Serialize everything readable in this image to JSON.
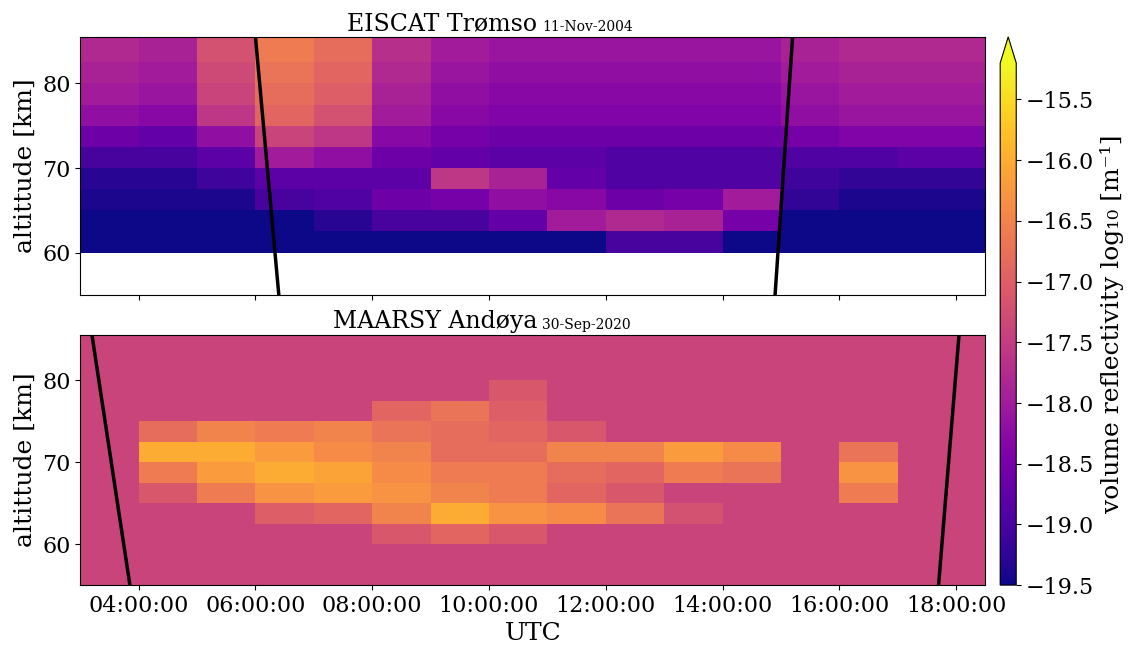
{
  "chart_data": [
    {
      "type": "heatmap",
      "title": "EISCAT Trømso",
      "subtitle": "11-Nov-2004",
      "y_label": "altittude [km]",
      "tick_labels": "y",
      "xlim": [
        3.0,
        18.5
      ],
      "xticks": [
        4,
        6,
        8,
        10,
        12,
        14,
        16,
        18
      ],
      "ylim": [
        55,
        85.5
      ],
      "yticks": [
        60,
        70,
        80
      ],
      "x_edges": [
        3.0,
        4.0,
        5.0,
        6.0,
        7.0,
        8.0,
        9.0,
        10.0,
        11.0,
        12.0,
        13.0,
        14.0,
        15.0,
        16.0,
        17.0,
        18.0,
        18.5
      ],
      "y_edges": [
        55,
        57.5,
        60,
        62.5,
        65,
        67.5,
        70,
        72.5,
        75,
        77.5,
        80,
        82.5,
        85.5
      ],
      "cells": [
        [
          null,
          null,
          null,
          null,
          null,
          null,
          null,
          null,
          null,
          null,
          null,
          null,
          null,
          null,
          null,
          null
        ],
        [
          null,
          null,
          null,
          null,
          null,
          null,
          null,
          null,
          null,
          null,
          null,
          null,
          null,
          null,
          null,
          null
        ],
        [
          -19.5,
          -19.5,
          -19.5,
          -19.5,
          -19.5,
          -19.5,
          -19.5,
          -19.5,
          -19.5,
          -19.0,
          -19.0,
          -19.5,
          -19.5,
          -19.5,
          -19.5,
          -19.5
        ],
        [
          -19.5,
          -19.5,
          -19.5,
          -19.5,
          -19.3,
          -19.0,
          -19.0,
          -18.7,
          -18.0,
          -17.8,
          -17.9,
          -18.5,
          -19.5,
          -19.5,
          -19.5,
          -19.5
        ],
        [
          -19.4,
          -19.4,
          -19.4,
          -19.0,
          -18.9,
          -18.6,
          -18.5,
          -18.2,
          -18.3,
          -18.6,
          -18.5,
          -18.0,
          -19.2,
          -19.4,
          -19.4,
          -19.4
        ],
        [
          -19.3,
          -19.3,
          -19.1,
          -18.8,
          -18.8,
          -18.8,
          -17.6,
          -17.9,
          -18.7,
          -18.9,
          -18.9,
          -18.9,
          -19.1,
          -19.2,
          -19.2,
          -19.2
        ],
        [
          -19.0,
          -19.0,
          -18.8,
          -18.0,
          -18.2,
          -18.6,
          -18.7,
          -18.8,
          -18.8,
          -18.9,
          -18.9,
          -18.9,
          -18.9,
          -18.9,
          -18.8,
          -18.8
        ],
        [
          -18.6,
          -18.7,
          -18.2,
          -17.4,
          -17.6,
          -18.3,
          -18.5,
          -18.6,
          -18.6,
          -18.6,
          -18.6,
          -18.6,
          -18.5,
          -18.4,
          -18.4,
          -18.4
        ],
        [
          -18.2,
          -18.3,
          -17.6,
          -16.9,
          -17.2,
          -18.0,
          -18.3,
          -18.4,
          -18.4,
          -18.4,
          -18.4,
          -18.4,
          -18.2,
          -18.1,
          -18.1,
          -18.1
        ],
        [
          -18.0,
          -18.1,
          -17.4,
          -16.8,
          -17.0,
          -17.9,
          -18.2,
          -18.3,
          -18.3,
          -18.3,
          -18.3,
          -18.3,
          -18.1,
          -18.0,
          -18.0,
          -18.0
        ],
        [
          -17.9,
          -18.0,
          -17.3,
          -16.7,
          -16.9,
          -17.8,
          -18.1,
          -18.2,
          -18.2,
          -18.2,
          -18.2,
          -18.2,
          -18.0,
          -17.9,
          -17.9,
          -17.9
        ],
        [
          -17.8,
          -17.9,
          -17.2,
          -16.6,
          -16.8,
          -17.7,
          -18.0,
          -18.1,
          -18.1,
          -18.1,
          -18.1,
          -18.1,
          -17.9,
          -17.8,
          -17.8,
          -17.8
        ]
      ],
      "lines": [
        {
          "x": [
            6.0,
            6.4
          ],
          "y": [
            85.5,
            55
          ]
        },
        {
          "x": [
            14.9,
            15.2
          ],
          "y": [
            55,
            85.5
          ]
        }
      ]
    },
    {
      "type": "heatmap",
      "title": "MAARSY Andøya",
      "subtitle": "30-Sep-2020",
      "x_label": "UTC",
      "y_label": "altittude [km]",
      "xlim": [
        3.0,
        18.5
      ],
      "xticks": [
        {
          "value": 4,
          "label": "04:00:00"
        },
        {
          "value": 6,
          "label": "06:00:00"
        },
        {
          "value": 8,
          "label": "08:00:00"
        },
        {
          "value": 10,
          "label": "10:00:00"
        },
        {
          "value": 12,
          "label": "12:00:00"
        },
        {
          "value": 14,
          "label": "14:00:00"
        },
        {
          "value": 16,
          "label": "16:00:00"
        },
        {
          "value": 18,
          "label": "18:00:00"
        }
      ],
      "ylim": [
        55,
        85.5
      ],
      "yticks": [
        60,
        70,
        80
      ],
      "x_edges": [
        3.0,
        4.0,
        5.0,
        6.0,
        7.0,
        8.0,
        9.0,
        10.0,
        11.0,
        12.0,
        13.0,
        14.0,
        15.0,
        16.0,
        17.0,
        18.0,
        18.5
      ],
      "y_edges": [
        55,
        57.5,
        60,
        62.5,
        65,
        67.5,
        70,
        72.5,
        75,
        77.5,
        80,
        82.5,
        85.5
      ],
      "cells": [
        [
          -17.4,
          -17.4,
          -17.4,
          -17.4,
          -17.4,
          -17.4,
          -17.4,
          -17.4,
          -17.4,
          -17.4,
          -17.4,
          -17.4,
          -17.4,
          -17.4,
          -17.4,
          -17.4
        ],
        [
          -17.4,
          -17.4,
          -17.4,
          -17.4,
          -17.4,
          -17.4,
          -17.4,
          -17.4,
          -17.4,
          -17.4,
          -17.4,
          -17.4,
          -17.4,
          -17.4,
          -17.4,
          -17.4
        ],
        [
          -17.4,
          -17.4,
          -17.4,
          -17.4,
          -17.4,
          -17.1,
          -16.9,
          -17.1,
          -17.4,
          -17.4,
          -17.4,
          -17.4,
          -17.4,
          -17.4,
          -17.4,
          -17.4
        ],
        [
          -17.4,
          -17.4,
          -17.4,
          -17.0,
          -16.9,
          -16.5,
          -16.0,
          -16.3,
          -16.4,
          -16.7,
          -17.2,
          -17.4,
          -17.4,
          -17.4,
          -17.4,
          -17.4
        ],
        [
          -17.4,
          -17.1,
          -16.6,
          -16.3,
          -16.2,
          -16.3,
          -16.5,
          -16.6,
          -16.9,
          -17.1,
          -17.4,
          -17.4,
          -17.4,
          -16.6,
          -17.4,
          -17.4
        ],
        [
          -17.4,
          -16.6,
          -16.2,
          -16.0,
          -16.1,
          -16.4,
          -16.6,
          -16.6,
          -16.8,
          -16.9,
          -16.6,
          -16.7,
          -17.4,
          -16.3,
          -17.4,
          -17.4
        ],
        [
          -17.4,
          -16.0,
          -16.0,
          -16.2,
          -16.4,
          -16.5,
          -16.8,
          -16.8,
          -16.5,
          -16.5,
          -16.2,
          -16.4,
          -17.4,
          -16.7,
          -17.4,
          -17.4
        ],
        [
          -17.4,
          -16.8,
          -16.5,
          -16.6,
          -16.5,
          -16.7,
          -16.8,
          -16.9,
          -17.1,
          -17.4,
          -17.4,
          -17.4,
          -17.4,
          -17.4,
          -17.4,
          -17.4
        ],
        [
          -17.4,
          -17.4,
          -17.4,
          -17.4,
          -17.4,
          -16.9,
          -16.7,
          -17.0,
          -17.4,
          -17.4,
          -17.4,
          -17.4,
          -17.4,
          -17.4,
          -17.4,
          -17.4
        ],
        [
          -17.4,
          -17.4,
          -17.4,
          -17.4,
          -17.4,
          -17.4,
          -17.4,
          -17.1,
          -17.4,
          -17.4,
          -17.4,
          -17.4,
          -17.4,
          -17.4,
          -17.4,
          -17.4
        ],
        [
          -17.4,
          -17.4,
          -17.4,
          -17.4,
          -17.4,
          -17.4,
          -17.4,
          -17.4,
          -17.4,
          -17.4,
          -17.4,
          -17.4,
          -17.4,
          -17.4,
          -17.4,
          -17.4
        ],
        [
          -17.4,
          -17.4,
          -17.4,
          -17.4,
          -17.4,
          -17.4,
          -17.4,
          -17.4,
          -17.4,
          -17.4,
          -17.4,
          -17.4,
          -17.4,
          -17.4,
          -17.4,
          -17.4
        ]
      ],
      "lines": [
        {
          "x": [
            3.2,
            3.85
          ],
          "y": [
            85.5,
            55
          ]
        },
        {
          "x": [
            17.7,
            18.05
          ],
          "y": [
            55,
            85.5
          ]
        }
      ]
    }
  ],
  "colorbar": {
    "label": "volume reflectivity log₁₀ [m⁻¹]",
    "zlim": [
      -19.5,
      -15.2
    ],
    "zticks": [
      {
        "value": -19.5,
        "label": "−19.5"
      },
      {
        "value": -19.0,
        "label": "−19.0"
      },
      {
        "value": -18.5,
        "label": "−18.5"
      },
      {
        "value": -18.0,
        "label": "−18.0"
      },
      {
        "value": -17.5,
        "label": "−17.5"
      },
      {
        "value": -17.0,
        "label": "−17.0"
      },
      {
        "value": -16.5,
        "label": "−16.5"
      },
      {
        "value": -16.0,
        "label": "−16.0"
      },
      {
        "value": -15.5,
        "label": "−15.5"
      }
    ]
  }
}
